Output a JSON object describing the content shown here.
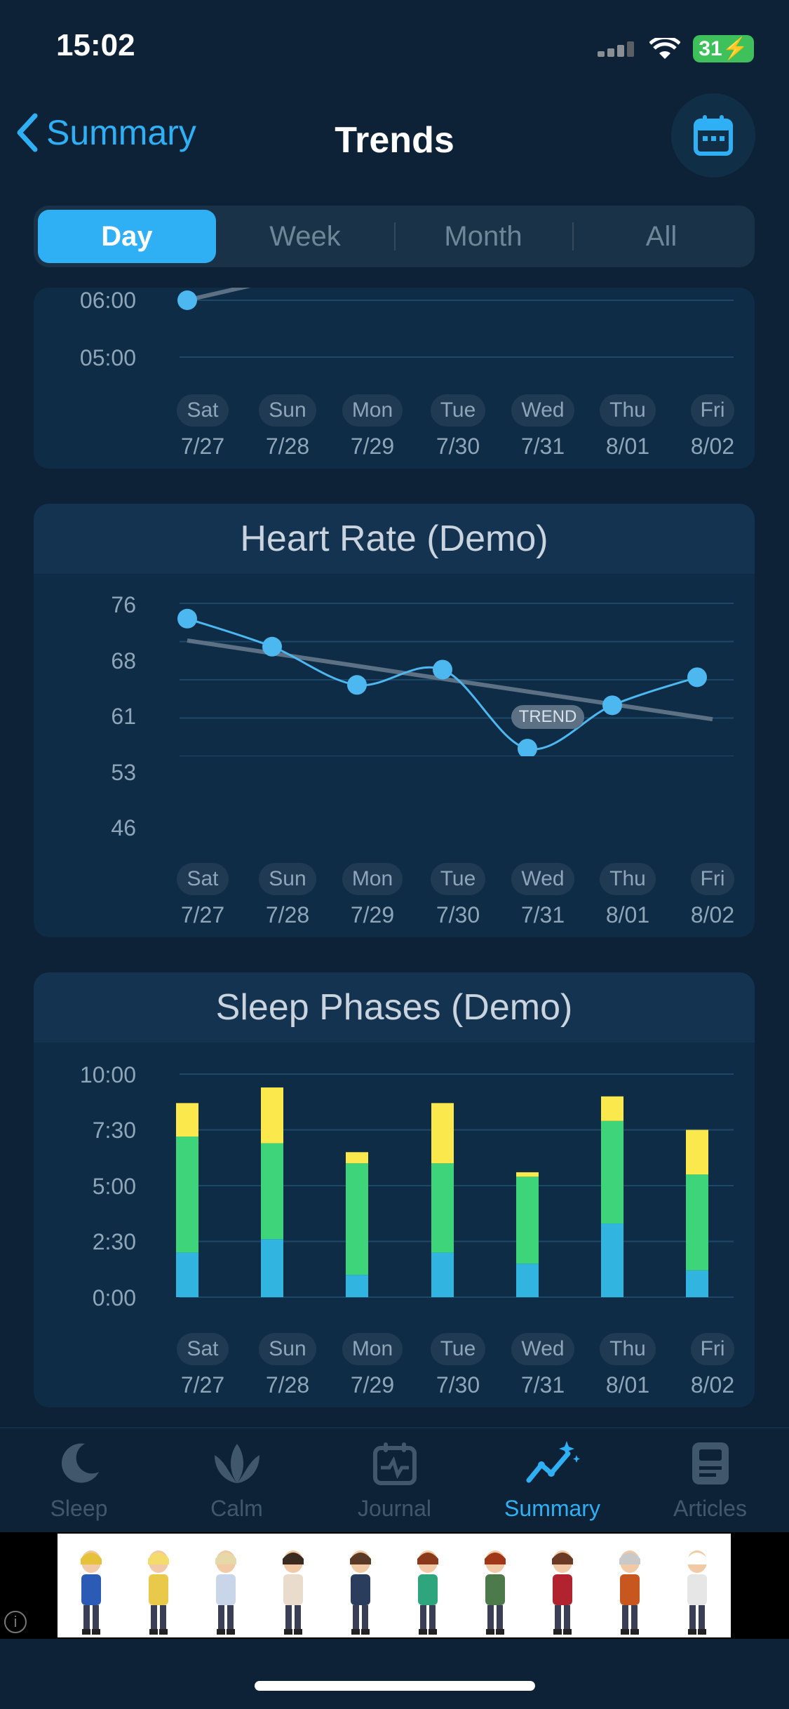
{
  "status": {
    "time": "15:02",
    "battery": "31"
  },
  "nav": {
    "back_label": "Summary",
    "title": "Trends"
  },
  "segments": [
    "Day",
    "Week",
    "Month",
    "All"
  ],
  "days": [
    {
      "name": "Sat",
      "date": "7/27"
    },
    {
      "name": "Sun",
      "date": "7/28"
    },
    {
      "name": "Mon",
      "date": "7/29"
    },
    {
      "name": "Tue",
      "date": "7/30"
    },
    {
      "name": "Wed",
      "date": "7/31"
    },
    {
      "name": "Thu",
      "date": "8/01"
    },
    {
      "name": "Fri",
      "date": "8/02"
    }
  ],
  "top_chart": {
    "y_labels": [
      "06:00",
      "05:00"
    ]
  },
  "heart": {
    "title": "Heart Rate (Demo)",
    "y_labels": [
      "76",
      "68",
      "61",
      "53",
      "46"
    ],
    "trend_label": "TREND"
  },
  "sleep": {
    "title": "Sleep Phases (Demo)",
    "y_labels": [
      "10:00",
      "7:30",
      "5:00",
      "2:30",
      "0:00"
    ]
  },
  "tabs": [
    {
      "label": "Sleep",
      "icon": "moon-icon"
    },
    {
      "label": "Calm",
      "icon": "lotus-icon"
    },
    {
      "label": "Journal",
      "icon": "journal-icon"
    },
    {
      "label": "Summary",
      "icon": "trend-icon"
    },
    {
      "label": "Articles",
      "icon": "articles-icon"
    }
  ],
  "chart_data": [
    {
      "type": "line",
      "title": "Heart Rate (Demo)",
      "categories": [
        "Sat 7/27",
        "Sun 7/28",
        "Mon 7/29",
        "Tue 7/30",
        "Wed 7/31",
        "Thu 8/01",
        "Fri 8/02"
      ],
      "series": [
        {
          "values": [
            73,
            67.5,
            60,
            63,
            47.5,
            56,
            61.5
          ]
        }
      ],
      "trend_label": "TREND",
      "ylim": [
        46,
        76
      ],
      "colors": {
        "line": "#4db8f0",
        "trend": "#5d7184"
      }
    },
    {
      "type": "bar",
      "title": "Sleep Phases (Demo)",
      "categories": [
        "Sat 7/27",
        "Sun 7/28",
        "Mon 7/29",
        "Tue 7/30",
        "Wed 7/31",
        "Thu 8/01",
        "Fri 8/02"
      ],
      "series": [
        {
          "color": "#31b4e0",
          "values": [
            2.0,
            2.6,
            1.0,
            2.0,
            1.5,
            3.3,
            1.2
          ]
        },
        {
          "color": "#3ed47a",
          "values": [
            5.2,
            4.3,
            5.0,
            4.0,
            3.9,
            4.6,
            4.3
          ]
        },
        {
          "color": "#fbe84d",
          "values": [
            1.5,
            2.5,
            0.5,
            2.7,
            0.2,
            1.1,
            2.0
          ]
        }
      ],
      "ylim": [
        0,
        10
      ]
    }
  ]
}
